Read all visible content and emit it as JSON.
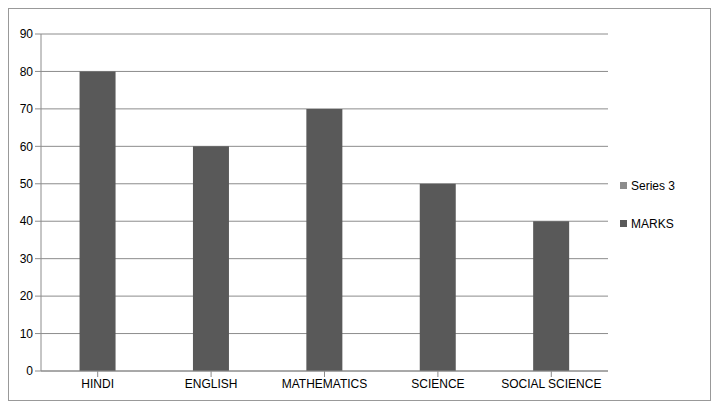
{
  "chart_data": {
    "type": "bar",
    "categories": [
      "HINDI",
      "ENGLISH",
      "MATHEMATICS",
      "SCIENCE",
      "SOCIAL SCIENCE"
    ],
    "series": [
      {
        "name": "Series 3",
        "color": "#8c8c8c",
        "values": [
          null,
          null,
          null,
          null,
          null
        ]
      },
      {
        "name": "MARKS",
        "color": "#595959",
        "values": [
          80,
          60,
          70,
          50,
          40
        ]
      }
    ],
    "ylim": [
      0,
      90
    ],
    "yticks": [
      0,
      10,
      20,
      30,
      40,
      50,
      60,
      70,
      80,
      90
    ],
    "grid": true,
    "legend": "right"
  }
}
